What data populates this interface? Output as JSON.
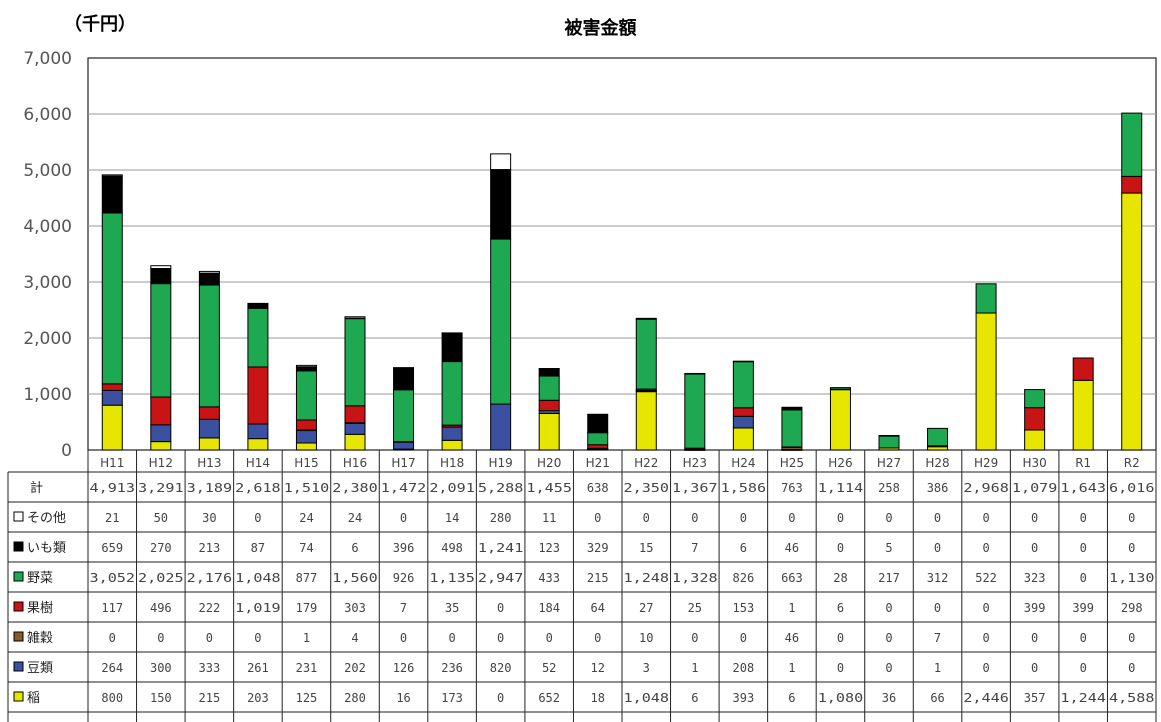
{
  "chart_data": {
    "type": "bar",
    "stacked": true,
    "title": "被害金額",
    "unit_label": "（千円）",
    "ylim": [
      0,
      7000
    ],
    "yticks": [
      "0",
      "1,000",
      "2,000",
      "3,000",
      "4,000",
      "5,000",
      "6,000",
      "7,000"
    ],
    "grid": true,
    "categories": [
      "H11",
      "H12",
      "H13",
      "H14",
      "H15",
      "H16",
      "H17",
      "H18",
      "H19",
      "H20",
      "H21",
      "H22",
      "H23",
      "H24",
      "H25",
      "H26",
      "H27",
      "H28",
      "H29",
      "H30",
      "R1",
      "R2"
    ],
    "totals_label": "計",
    "totals": [
      "4,913",
      "3,291",
      "3,189",
      "2,618",
      "1,510",
      "2,380",
      "1,472",
      "2,091",
      "5,288",
      "1,455",
      "638",
      "2,350",
      "1,367",
      "1,586",
      "763",
      "1,114",
      "258",
      "386",
      "2,968",
      "1,079",
      "1,643",
      "6,016"
    ],
    "series": [
      {
        "name": "稲",
        "color": "#e6e600",
        "values": [
          800,
          150,
          215,
          203,
          125,
          280,
          16,
          173,
          0,
          652,
          18,
          1048,
          6,
          393,
          6,
          1080,
          36,
          66,
          2446,
          357,
          1244,
          4588
        ],
        "labels": [
          "800",
          "150",
          "215",
          "203",
          "125",
          "280",
          "16",
          "173",
          "0",
          "652",
          "18",
          "1,048",
          "6",
          "393",
          "6",
          "1,080",
          "36",
          "66",
          "2,446",
          "357",
          "1,244",
          "4,588"
        ]
      },
      {
        "name": "豆類",
        "color": "#3b50a0",
        "values": [
          264,
          300,
          333,
          261,
          231,
          202,
          126,
          236,
          820,
          52,
          12,
          3,
          1,
          208,
          1,
          0,
          0,
          1,
          0,
          0,
          0,
          0
        ],
        "labels": [
          "264",
          "300",
          "333",
          "261",
          "231",
          "202",
          "126",
          "236",
          "820",
          "52",
          "12",
          "3",
          "1",
          "208",
          "1",
          "0",
          "0",
          "1",
          "0",
          "0",
          "0",
          "0"
        ]
      },
      {
        "name": "雑穀",
        "color": "#8b5a2b",
        "values": [
          0,
          0,
          0,
          0,
          1,
          4,
          0,
          0,
          0,
          0,
          0,
          10,
          0,
          0,
          46,
          0,
          0,
          7,
          0,
          0,
          0,
          0
        ],
        "labels": [
          "0",
          "0",
          "0",
          "0",
          "1",
          "4",
          "0",
          "0",
          "0",
          "0",
          "0",
          "10",
          "0",
          "0",
          "46",
          "0",
          "0",
          "7",
          "0",
          "0",
          "0",
          "0"
        ]
      },
      {
        "name": "果樹",
        "color": "#c81414",
        "values": [
          117,
          496,
          222,
          1019,
          179,
          303,
          7,
          35,
          0,
          184,
          64,
          27,
          25,
          153,
          1,
          6,
          0,
          0,
          0,
          399,
          399,
          298
        ],
        "labels": [
          "117",
          "496",
          "222",
          "1,019",
          "179",
          "303",
          "7",
          "35",
          "0",
          "184",
          "64",
          "27",
          "25",
          "153",
          "1",
          "6",
          "0",
          "0",
          "0",
          "399",
          "399",
          "298"
        ]
      },
      {
        "name": "野菜",
        "color": "#1da851",
        "values": [
          3052,
          2025,
          2176,
          1048,
          877,
          1560,
          926,
          1135,
          2947,
          433,
          215,
          1248,
          1328,
          826,
          663,
          28,
          217,
          312,
          522,
          323,
          0,
          1130
        ],
        "labels": [
          "3,052",
          "2,025",
          "2,176",
          "1,048",
          "877",
          "1,560",
          "926",
          "1,135",
          "2,947",
          "433",
          "215",
          "1,248",
          "1,328",
          "826",
          "663",
          "28",
          "217",
          "312",
          "522",
          "323",
          "0",
          "1,130"
        ]
      },
      {
        "name": "いも類",
        "color": "#000000",
        "values": [
          659,
          270,
          213,
          87,
          74,
          6,
          396,
          498,
          1241,
          123,
          329,
          15,
          7,
          6,
          46,
          0,
          5,
          0,
          0,
          0,
          0,
          0
        ],
        "labels": [
          "659",
          "270",
          "213",
          "87",
          "74",
          "6",
          "396",
          "498",
          "1,241",
          "123",
          "329",
          "15",
          "7",
          "6",
          "46",
          "0",
          "5",
          "0",
          "0",
          "0",
          "0",
          "0"
        ]
      },
      {
        "name": "その他",
        "color": "#ffffff",
        "values": [
          21,
          50,
          30,
          0,
          24,
          24,
          0,
          14,
          280,
          11,
          0,
          0,
          0,
          0,
          0,
          0,
          0,
          0,
          0,
          0,
          0,
          0
        ],
        "labels": [
          "21",
          "50",
          "30",
          "0",
          "24",
          "24",
          "0",
          "14",
          "280",
          "11",
          "0",
          "0",
          "0",
          "0",
          "0",
          "0",
          "0",
          "0",
          "0",
          "0",
          "0",
          "0"
        ]
      }
    ]
  }
}
